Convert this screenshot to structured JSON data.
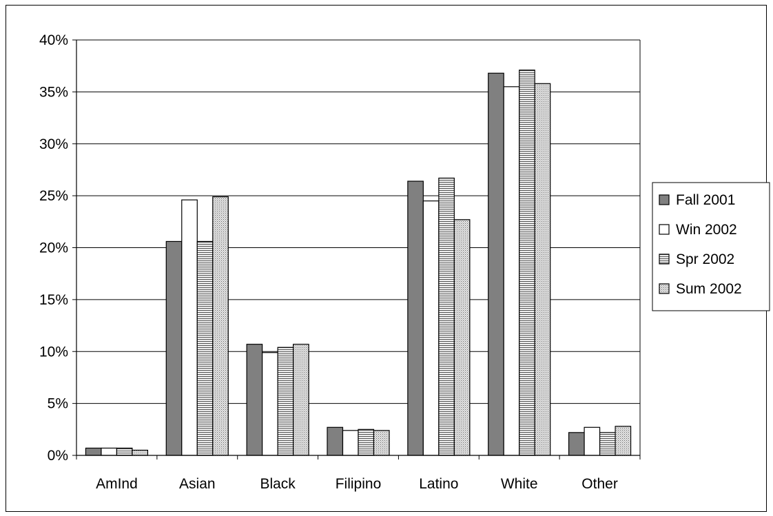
{
  "chart_data": {
    "type": "bar",
    "title": "",
    "xlabel": "",
    "ylabel": "",
    "categories": [
      "AmInd",
      "Asian",
      "Black",
      "Filipino",
      "Latino",
      "White",
      "Other"
    ],
    "series": [
      {
        "name": "Fall 2001",
        "values": [
          0.7,
          20.6,
          10.7,
          2.7,
          26.4,
          36.8,
          2.2
        ],
        "fill": "#808080"
      },
      {
        "name": "Win 2002",
        "values": [
          0.7,
          24.6,
          9.9,
          2.4,
          24.5,
          35.5,
          2.7
        ],
        "fill": "#ffffff"
      },
      {
        "name": "Spr 2002",
        "values": [
          0.7,
          20.6,
          10.4,
          2.5,
          26.7,
          37.1,
          2.2
        ],
        "fill": "pattern-horizontal"
      },
      {
        "name": "Sum 2002",
        "values": [
          0.5,
          24.9,
          10.7,
          2.4,
          22.7,
          35.8,
          2.8
        ],
        "fill": "pattern-dots"
      }
    ],
    "y_tick_labels": [
      "0%",
      "5%",
      "10%",
      "15%",
      "20%",
      "25%",
      "30%",
      "35%",
      "40%"
    ],
    "ylim": [
      0,
      40
    ],
    "grid": true,
    "legend": "right",
    "colors": {
      "bar_stroke": "#000000",
      "grid": "#000000",
      "background": "#ffffff"
    }
  }
}
